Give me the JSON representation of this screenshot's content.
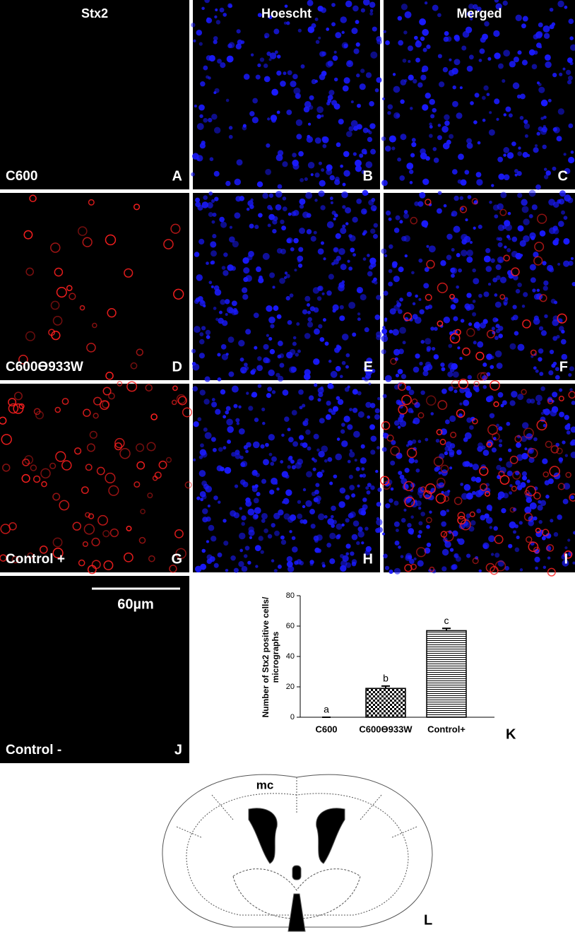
{
  "columns": [
    "Stx2",
    "Hoescht",
    "Merged"
  ],
  "rows": [
    {
      "label": "C600",
      "panels": [
        "A",
        "B",
        "C"
      ]
    },
    {
      "label": "C600ϴ933W",
      "panels": [
        "D",
        "E",
        "F"
      ]
    },
    {
      "label": "Control +",
      "panels": [
        "G",
        "H",
        "I"
      ]
    }
  ],
  "control_negative": {
    "label": "Control -",
    "panel": "J",
    "scale_bar": "60µm"
  },
  "chart_data": {
    "type": "bar",
    "panel": "K",
    "ylabel": [
      "Number of Stx2 positive cells/",
      "micrographs"
    ],
    "categories": [
      "C600",
      "C600ϴ933W",
      "Control+"
    ],
    "series": [
      {
        "values": [
          0,
          19,
          57
        ],
        "errors": [
          0,
          1.5,
          1.5
        ],
        "patterns": [
          "none",
          "checker",
          "hlines"
        ],
        "color": "#000000"
      }
    ],
    "annotations": [
      "a",
      "b",
      "c"
    ],
    "ylim": [
      0,
      80
    ],
    "yticks": [
      0,
      20,
      40,
      60,
      80
    ]
  },
  "diagram": {
    "label": "mc",
    "panel": "L"
  }
}
